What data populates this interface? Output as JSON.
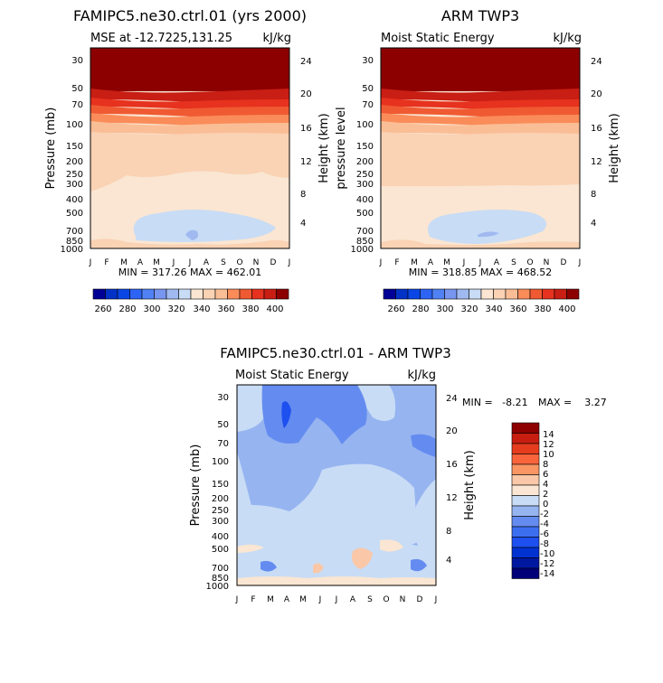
{
  "colors": {
    "mse_scale": [
      "#000096",
      "#0032c8",
      "#0a46e6",
      "#2d64f5",
      "#5082f5",
      "#7896f0",
      "#a0b9f0",
      "#c8dcf5",
      "#fae6d2",
      "#fad2b4",
      "#fabe96",
      "#fa8c5a",
      "#f05a32",
      "#e6321e",
      "#c81e14",
      "#8c0000"
    ],
    "diff_scale": [
      "#000078",
      "#0018a0",
      "#0032d2",
      "#1e50f0",
      "#3c6ef0",
      "#648cf0",
      "#96b4f0",
      "#c8dcf5",
      "#fae6d2",
      "#fac8a8",
      "#fa9664",
      "#fa643c",
      "#e63c1e",
      "#c81e10",
      "#8c0000"
    ]
  },
  "chart_data": [
    {
      "type": "heatmap",
      "title": "FAMIPC5.ne30.ctrl.01 (yrs 2000)",
      "subtitle_left": "MSE at -12.7225,131.25",
      "subtitle_right": "kJ/kg",
      "ylabel": "Pressure (mb)",
      "ylabel_right": "Height (km)",
      "months": [
        "J",
        "F",
        "M",
        "A",
        "M",
        "J",
        "J",
        "A",
        "S",
        "O",
        "N",
        "D",
        "J"
      ],
      "pressure_ticks": [
        "30",
        "50",
        "70",
        "100",
        "150",
        "200",
        "250",
        "300",
        "400",
        "500",
        "700",
        "850",
        "1000"
      ],
      "height_ticks": [
        "24",
        "20",
        "16",
        "12",
        "8",
        "4"
      ],
      "stats": "MIN = 317.26 MAX = 462.01",
      "colorbar_labels": [
        "260",
        "280",
        "300",
        "320",
        "340",
        "360",
        "380",
        "400"
      ]
    },
    {
      "type": "heatmap",
      "title": "ARM TWP3",
      "subtitle_left": "Moist Static Energy",
      "subtitle_right": "kJ/kg",
      "ylabel": "pressure level",
      "ylabel_right": "Height (km)",
      "months": [
        "J",
        "F",
        "M",
        "A",
        "M",
        "J",
        "J",
        "A",
        "S",
        "O",
        "N",
        "D",
        "J"
      ],
      "pressure_ticks": [
        "30",
        "50",
        "70",
        "100",
        "150",
        "200",
        "250",
        "300",
        "400",
        "500",
        "700",
        "850",
        "1000"
      ],
      "height_ticks": [
        "24",
        "20",
        "16",
        "12",
        "8",
        "4"
      ],
      "stats": "MIN = 318.85 MAX = 468.52",
      "colorbar_labels": [
        "260",
        "280",
        "300",
        "320",
        "340",
        "360",
        "380",
        "400"
      ]
    },
    {
      "type": "heatmap",
      "title": "FAMIPC5.ne30.ctrl.01 - ARM TWP3",
      "subtitle_left": "Moist Static Energy",
      "subtitle_right": "kJ/kg",
      "ylabel": "Pressure (mb)",
      "ylabel_right": "Height (km)",
      "months": [
        "J",
        "F",
        "M",
        "A",
        "M",
        "J",
        "J",
        "A",
        "S",
        "O",
        "N",
        "D",
        "J"
      ],
      "pressure_ticks": [
        "30",
        "50",
        "70",
        "100",
        "150",
        "200",
        "250",
        "300",
        "400",
        "500",
        "700",
        "850",
        "1000"
      ],
      "height_ticks": [
        "24",
        "20",
        "16",
        "12",
        "8",
        "4"
      ],
      "stats_min": "MIN =   -8.21",
      "stats_max": "MAX =    3.27",
      "colorbar_labels": [
        "14",
        "12",
        "10",
        "8",
        "6",
        "4",
        "2",
        "0",
        "-2",
        "-4",
        "-6",
        "-8",
        "-10",
        "-12",
        "-14"
      ]
    }
  ]
}
